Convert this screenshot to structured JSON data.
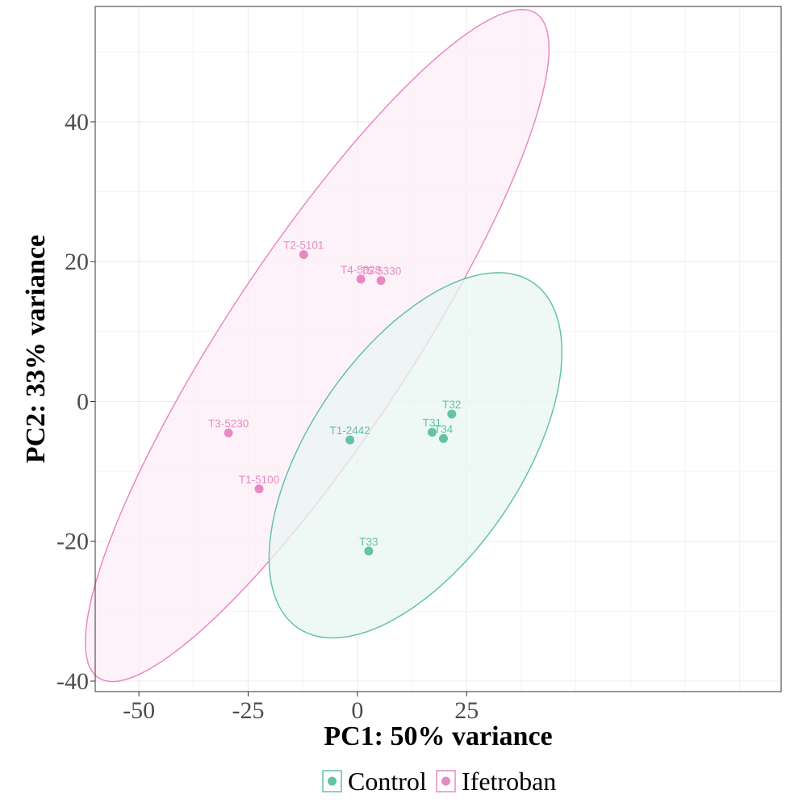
{
  "chart_data": {
    "type": "scatter",
    "xlabel": "PC1: 50% variance",
    "ylabel": "PC2: 33% variance",
    "xlim": [
      -60,
      97
    ],
    "ylim": [
      -41.5,
      56.5
    ],
    "xticks": [
      -50,
      -25,
      0,
      25
    ],
    "yticks": [
      -40,
      -20,
      0,
      20,
      40
    ],
    "xtick_labels": [
      "-50",
      "-25",
      "0",
      "25"
    ],
    "ytick_labels": [
      "-40",
      "-20",
      "0",
      "20",
      "40"
    ],
    "grid": true,
    "legend_position": "bottom",
    "series": [
      {
        "name": "Control",
        "color": "#66c2a5",
        "ellipse_color": "#66c2a5",
        "ellipse_fill": "#e8f6f1",
        "points": [
          {
            "label": "T32",
            "x": 21.6,
            "y": -1.8
          },
          {
            "label": "T31",
            "x": 17.1,
            "y": -4.4
          },
          {
            "label": "T34",
            "x": 19.7,
            "y": -5.3
          },
          {
            "label": "T1-2442",
            "x": -1.7,
            "y": -5.5
          },
          {
            "label": "T33",
            "x": 2.6,
            "y": -21.4
          }
        ]
      },
      {
        "name": "Ifetroban",
        "color": "#e78ac3",
        "ellipse_color": "#e78ac3",
        "ellipse_fill": "#fdeef7",
        "points": [
          {
            "label": "T2-5101",
            "x": -12.3,
            "y": 21.0
          },
          {
            "label": "T4-5329",
            "x": 0.8,
            "y": 17.5
          },
          {
            "label": "T5-5330",
            "x": 5.4,
            "y": 17.3
          },
          {
            "label": "T3-5230",
            "x": -29.5,
            "y": -4.5
          },
          {
            "label": "T1-5100",
            "x": -22.5,
            "y": -12.5
          }
        ]
      }
    ],
    "ellipses": [
      {
        "series": "Ifetroban",
        "center": [
          -9.2,
          8.0
        ],
        "semi_major": 69.5,
        "semi_minor": 17.2,
        "angle_deg": 41.8
      },
      {
        "series": "Control",
        "center": [
          13.3,
          -7.7
        ],
        "semi_major": 38.0,
        "semi_minor": 19.0,
        "angle_deg": 33.0
      }
    ]
  }
}
